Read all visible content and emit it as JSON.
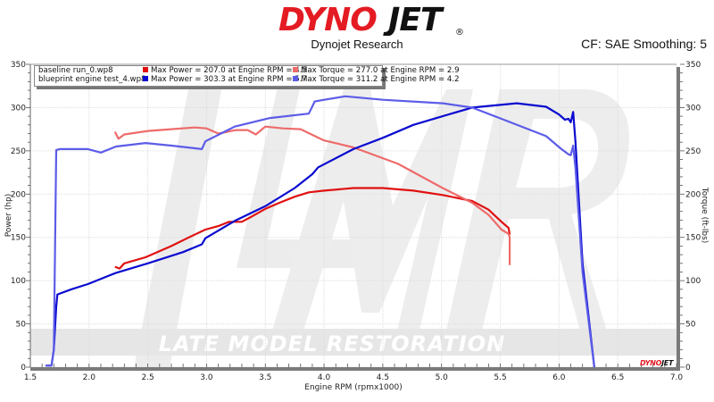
{
  "header": {
    "brand_left": "DYNO",
    "brand_right": "JET",
    "registered": "®",
    "subtitle": "Dynojet Research",
    "cf_info": "CF: SAE Smoothing: 5",
    "brand_red": "#e41b23",
    "brand_black": "#111111"
  },
  "legend": {
    "rows": [
      {
        "name": "baseline run_0.wp8",
        "power_text": "Max Power = 207.0 at Engine RPM = 4.5",
        "torque_text": "Max Torque = 277.0 at Engine RPM = 2.9",
        "power_color": "#e01010",
        "torque_color": "#ee6b6b"
      },
      {
        "name": "blueprint engine test_4.wp8",
        "power_text": "Max Power = 303.3 at Engine RPM = 5.7",
        "torque_text": "Max Torque = 311.2 at Engine RPM = 4.2",
        "power_color": "#0a0ad0",
        "torque_color": "#5c5ce8"
      }
    ]
  },
  "watermark": {
    "text": "LATE MODEL RESTORATION",
    "mini_logo_left": "DYNO",
    "mini_logo_right": "JET"
  },
  "chart_data": {
    "type": "line",
    "title": "Dynojet Research",
    "xlabel": "Engine RPM (rpmx1000)",
    "ylabel": "Power (hp)",
    "ylabel_right": "Torque (ft-lbs)",
    "xlim": [
      1.5,
      7.0
    ],
    "ylim": [
      0,
      350
    ],
    "ylim_right": [
      0,
      350
    ],
    "x_ticks": [
      "1.5",
      "2.0",
      "2.5",
      "3.0",
      "3.5",
      "4.0",
      "4.5",
      "5.0",
      "5.5",
      "6.0",
      "6.5",
      "7.0"
    ],
    "y_ticks": [
      "0",
      "50",
      "100",
      "150",
      "200",
      "250",
      "300",
      "350"
    ],
    "grid": true,
    "legend_position": "top-left",
    "series": [
      {
        "name": "baseline run_0.wp8 Power",
        "axis": "left",
        "color": "#e01010",
        "x": [
          2.22,
          2.26,
          2.3,
          2.48,
          2.7,
          2.85,
          2.99,
          3.1,
          3.19,
          3.3,
          3.37,
          3.5,
          3.62,
          3.75,
          3.87,
          4.0,
          4.25,
          4.5,
          4.76,
          5.01,
          5.26,
          5.4,
          5.51,
          5.57,
          5.58
        ],
        "values": [
          116,
          114,
          120,
          127,
          140,
          150,
          159,
          163,
          168,
          168,
          173,
          183,
          190,
          197,
          202,
          204,
          207,
          207,
          204,
          199,
          192,
          182,
          168,
          161,
          153
        ]
      },
      {
        "name": "baseline run_0.wp8 Torque",
        "axis": "right",
        "color": "#ee6b6b",
        "x": [
          2.22,
          2.25,
          2.3,
          2.5,
          2.7,
          2.9,
          3.0,
          3.1,
          3.25,
          3.35,
          3.42,
          3.5,
          3.65,
          3.8,
          4.0,
          4.25,
          4.63,
          5.01,
          5.26,
          5.4,
          5.51,
          5.57,
          5.58,
          5.58
        ],
        "values": [
          272,
          264,
          269,
          273,
          275,
          277,
          276,
          270,
          274,
          274,
          269,
          278,
          276,
          275,
          262,
          254,
          235,
          207,
          190,
          176,
          159,
          154,
          150,
          118
        ]
      },
      {
        "name": "blueprint engine test_4.wp8 Power",
        "axis": "left",
        "color": "#0a0ad0",
        "x": [
          1.63,
          1.68,
          1.7,
          1.72,
          1.73,
          1.85,
          1.99,
          2.23,
          2.5,
          2.8,
          2.96,
          2.99,
          3.24,
          3.5,
          3.75,
          3.9,
          3.95,
          4.25,
          4.5,
          4.76,
          5.01,
          5.26,
          5.64,
          5.89,
          6.0,
          6.05,
          6.08,
          6.1,
          6.12,
          6.14,
          6.2,
          6.3
        ],
        "values": [
          2,
          2,
          20,
          70,
          84,
          90,
          96,
          109,
          120,
          133,
          142,
          149,
          169,
          186,
          207,
          223,
          231,
          252,
          265,
          280,
          290,
          300,
          305,
          301,
          292,
          286,
          287,
          283,
          295,
          260,
          120,
          0
        ]
      },
      {
        "name": "blueprint engine test_4.wp8 Torque",
        "axis": "right",
        "color": "#5c5ce8",
        "x": [
          1.63,
          1.68,
          1.7,
          1.72,
          1.75,
          1.99,
          2.1,
          2.23,
          2.48,
          2.7,
          2.96,
          2.99,
          3.24,
          3.54,
          3.87,
          3.92,
          4.0,
          4.18,
          4.5,
          5.01,
          5.26,
          5.51,
          5.89,
          6.02,
          6.08,
          6.1,
          6.12,
          6.14,
          6.2,
          6.3
        ],
        "values": [
          2,
          2,
          20,
          251,
          252,
          252,
          248,
          255,
          259,
          256,
          252,
          261,
          278,
          288,
          293,
          307,
          309,
          313,
          309,
          305,
          300,
          287,
          267,
          252,
          246,
          245,
          256,
          230,
          110,
          0
        ]
      }
    ]
  }
}
